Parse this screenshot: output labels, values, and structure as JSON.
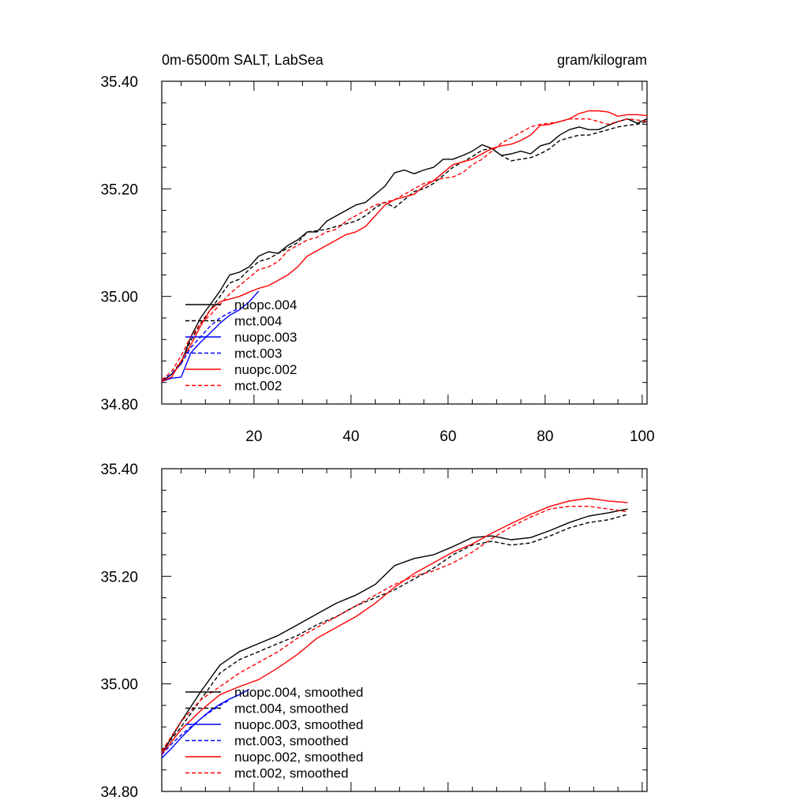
{
  "chart_data": [
    {
      "type": "line",
      "title": "0m-6500m SALT, LabSea",
      "units": "gram/kilogram",
      "xlim": [
        1,
        101
      ],
      "ylim": [
        34.8,
        35.4
      ],
      "xticks": [
        20,
        40,
        60,
        80,
        100
      ],
      "xtick_labels": [
        "20",
        "40",
        "60",
        "80",
        "100"
      ],
      "yticks": [
        34.8,
        35.0,
        35.2,
        35.4
      ],
      "ytick_labels": [
        "34.80",
        "35.00",
        "35.20",
        "35.40"
      ],
      "colors": {
        "black": "#000000",
        "blue": "#0000ff",
        "red": "#ff0000"
      },
      "legend_placement": "lower-left",
      "series": [
        {
          "name": "nuopc.004",
          "color": "black",
          "dash": "solid",
          "x": [
            1,
            3,
            5,
            7,
            9,
            11,
            13,
            15,
            17,
            19,
            21,
            23,
            25,
            27,
            29,
            31,
            33,
            35,
            37,
            39,
            41,
            43,
            45,
            47,
            49,
            51,
            53,
            55,
            57,
            59,
            61,
            63,
            65,
            67,
            69,
            71,
            73,
            75,
            77,
            79,
            81,
            83,
            85,
            87,
            89,
            91,
            93,
            95,
            97,
            99,
            101
          ],
          "y": [
            34.842,
            34.855,
            34.875,
            34.925,
            34.96,
            34.985,
            35.01,
            35.04,
            35.045,
            35.055,
            35.075,
            35.083,
            35.08,
            35.095,
            35.105,
            35.12,
            35.12,
            35.14,
            35.15,
            35.16,
            35.17,
            35.175,
            35.19,
            35.205,
            35.23,
            35.235,
            35.228,
            35.235,
            35.24,
            35.255,
            35.255,
            35.262,
            35.27,
            35.282,
            35.275,
            35.262,
            35.265,
            35.27,
            35.265,
            35.28,
            35.285,
            35.3,
            35.31,
            35.315,
            35.31,
            35.31,
            35.318,
            35.325,
            35.33,
            35.322,
            35.33
          ]
        },
        {
          "name": "mct.004",
          "color": "black",
          "dash": "dashed",
          "x": [
            1,
            3,
            5,
            7,
            9,
            11,
            13,
            15,
            17,
            19,
            21,
            23,
            25,
            27,
            29,
            31,
            33,
            35,
            37,
            39,
            41,
            43,
            45,
            47,
            49,
            51,
            53,
            55,
            57,
            59,
            61,
            63,
            65,
            67,
            69,
            71,
            73,
            75,
            77,
            79,
            81,
            83,
            85,
            87,
            89,
            91,
            93,
            95,
            97,
            99,
            101
          ],
          "y": [
            34.845,
            34.855,
            34.88,
            34.918,
            34.95,
            34.975,
            35.0,
            35.025,
            35.032,
            35.05,
            35.065,
            35.07,
            35.08,
            35.09,
            35.1,
            35.12,
            35.122,
            35.125,
            35.13,
            35.135,
            35.14,
            35.15,
            35.165,
            35.175,
            35.165,
            35.18,
            35.195,
            35.2,
            35.21,
            35.225,
            35.24,
            35.25,
            35.26,
            35.272,
            35.275,
            35.262,
            35.252,
            35.255,
            35.258,
            35.265,
            35.275,
            35.29,
            35.295,
            35.3,
            35.3,
            35.305,
            35.31,
            35.315,
            35.318,
            35.32,
            35.325
          ]
        },
        {
          "name": "nuopc.003",
          "color": "blue",
          "dash": "solid",
          "x": [
            1,
            3,
            5,
            7,
            9,
            11,
            13,
            15,
            17,
            19,
            21
          ],
          "y": [
            34.842,
            34.848,
            34.85,
            34.895,
            34.915,
            34.932,
            34.95,
            34.965,
            34.975,
            34.99,
            35.01
          ]
        },
        {
          "name": "mct.003",
          "color": "blue",
          "dash": "dashed",
          "x": [
            1,
            3,
            5,
            7,
            9,
            11,
            13,
            15,
            17
          ],
          "y": [
            34.845,
            34.855,
            34.875,
            34.905,
            34.925,
            34.945,
            34.96,
            34.97,
            34.978
          ]
        },
        {
          "name": "nuopc.002",
          "color": "red",
          "dash": "solid",
          "x": [
            1,
            3,
            5,
            7,
            9,
            11,
            13,
            15,
            17,
            19,
            21,
            23,
            25,
            27,
            29,
            31,
            33,
            35,
            37,
            39,
            41,
            43,
            45,
            47,
            49,
            51,
            53,
            55,
            57,
            59,
            61,
            63,
            65,
            67,
            69,
            71,
            73,
            75,
            77,
            79,
            81,
            83,
            85,
            87,
            89,
            91,
            93,
            95,
            97,
            99,
            101
          ],
          "y": [
            34.842,
            34.85,
            34.88,
            34.91,
            34.945,
            34.975,
            34.99,
            34.995,
            35.0,
            35.008,
            35.015,
            35.02,
            35.03,
            35.04,
            35.055,
            35.075,
            35.085,
            35.095,
            35.105,
            35.115,
            35.12,
            35.13,
            35.15,
            35.17,
            35.18,
            35.185,
            35.19,
            35.205,
            35.215,
            35.23,
            35.245,
            35.25,
            35.255,
            35.265,
            35.275,
            35.28,
            35.283,
            35.29,
            35.3,
            35.318,
            35.32,
            35.325,
            35.33,
            35.34,
            35.345,
            35.345,
            35.343,
            35.335,
            35.338,
            35.338,
            35.336
          ]
        },
        {
          "name": "mct.002",
          "color": "red",
          "dash": "dashed",
          "x": [
            1,
            3,
            5,
            7,
            9,
            11,
            13,
            15,
            17,
            19,
            21,
            23,
            25,
            27,
            29,
            31,
            33,
            35,
            37,
            39,
            41,
            43,
            45,
            47,
            49,
            51,
            53,
            55,
            57,
            59,
            61,
            63,
            65,
            67,
            69,
            71,
            73,
            75,
            77,
            79,
            81,
            83,
            85,
            87,
            89,
            91,
            93,
            95,
            97,
            99,
            101
          ],
          "y": [
            34.845,
            34.86,
            34.89,
            34.925,
            34.95,
            34.965,
            34.985,
            35.005,
            35.02,
            35.035,
            35.05,
            35.055,
            35.065,
            35.085,
            35.095,
            35.105,
            35.11,
            35.12,
            35.125,
            35.14,
            35.15,
            35.16,
            35.17,
            35.175,
            35.18,
            35.19,
            35.2,
            35.21,
            35.215,
            35.22,
            35.222,
            35.23,
            35.245,
            35.255,
            35.27,
            35.285,
            35.295,
            35.305,
            35.315,
            35.32,
            35.322,
            35.325,
            35.33,
            35.33,
            35.33,
            35.325,
            35.32,
            35.325,
            35.33,
            35.328,
            35.325
          ]
        }
      ]
    },
    {
      "type": "line",
      "xlim": [
        1,
        101
      ],
      "ylim": [
        34.8,
        35.4
      ],
      "yticks": [
        34.8,
        35.0,
        35.2,
        35.4
      ],
      "ytick_labels": [
        "34.80",
        "35.00",
        "35.20",
        "35.40"
      ],
      "xticks": [
        20,
        40,
        60,
        80,
        100
      ],
      "legend_placement": "lower-left",
      "series": [
        {
          "name": "nuopc.004, smoothed",
          "color": "black",
          "dash": "solid",
          "x": [
            1,
            5,
            9,
            13,
            17,
            21,
            25,
            29,
            33,
            37,
            41,
            45,
            49,
            53,
            57,
            61,
            65,
            69,
            73,
            77,
            81,
            85,
            89,
            93,
            97
          ],
          "y": [
            34.87,
            34.93,
            34.985,
            35.035,
            35.06,
            35.075,
            35.09,
            35.11,
            35.13,
            35.15,
            35.165,
            35.185,
            35.22,
            35.233,
            35.24,
            35.255,
            35.272,
            35.275,
            35.268,
            35.272,
            35.285,
            35.3,
            35.312,
            35.318,
            35.325
          ]
        },
        {
          "name": "mct.004, smoothed",
          "color": "black",
          "dash": "dashed",
          "x": [
            1,
            5,
            9,
            13,
            17,
            21,
            25,
            29,
            33,
            37,
            41,
            45,
            49,
            53,
            57,
            61,
            65,
            69,
            73,
            77,
            81,
            85,
            89,
            93,
            97
          ],
          "y": [
            34.875,
            34.92,
            34.97,
            35.02,
            35.045,
            35.06,
            35.075,
            35.09,
            35.11,
            35.125,
            35.145,
            35.16,
            35.175,
            35.195,
            35.215,
            35.24,
            35.258,
            35.265,
            35.258,
            35.262,
            35.275,
            35.29,
            35.3,
            35.305,
            35.315
          ]
        },
        {
          "name": "nuopc.003, smoothed",
          "color": "blue",
          "dash": "solid",
          "x": [
            1,
            3,
            5,
            7,
            9,
            11,
            13,
            15,
            17,
            19
          ],
          "y": [
            34.862,
            34.88,
            34.9,
            34.918,
            34.935,
            34.95,
            34.962,
            34.972,
            34.98,
            34.99
          ]
        },
        {
          "name": "mct.003, smoothed",
          "color": "blue",
          "dash": "dashed",
          "x": [
            1,
            3,
            5,
            7,
            9,
            11,
            13,
            15
          ],
          "y": [
            34.868,
            34.888,
            34.905,
            34.92,
            34.935,
            34.948,
            34.96,
            34.97
          ]
        },
        {
          "name": "nuopc.002, smoothed",
          "color": "red",
          "dash": "solid",
          "x": [
            1,
            5,
            9,
            13,
            17,
            21,
            25,
            29,
            33,
            37,
            41,
            45,
            49,
            53,
            57,
            61,
            65,
            69,
            73,
            77,
            81,
            85,
            89,
            93,
            97
          ],
          "y": [
            34.87,
            34.915,
            34.95,
            34.98,
            34.995,
            35.008,
            35.03,
            35.055,
            35.085,
            35.105,
            35.125,
            35.15,
            35.18,
            35.205,
            35.225,
            35.245,
            35.26,
            35.28,
            35.298,
            35.315,
            35.33,
            35.34,
            35.345,
            35.34,
            35.337
          ]
        },
        {
          "name": "mct.002, smoothed",
          "color": "red",
          "dash": "dashed",
          "x": [
            1,
            5,
            9,
            13,
            17,
            21,
            25,
            29,
            33,
            37,
            41,
            45,
            49,
            53,
            57,
            61,
            65,
            69,
            73,
            77,
            81,
            85,
            89,
            93,
            97
          ],
          "y": [
            34.875,
            34.93,
            34.97,
            34.995,
            35.02,
            35.04,
            35.06,
            35.085,
            35.105,
            35.125,
            35.145,
            35.165,
            35.185,
            35.2,
            35.21,
            35.225,
            35.245,
            35.27,
            35.292,
            35.31,
            35.325,
            35.33,
            35.33,
            35.325,
            35.32
          ]
        }
      ]
    }
  ]
}
